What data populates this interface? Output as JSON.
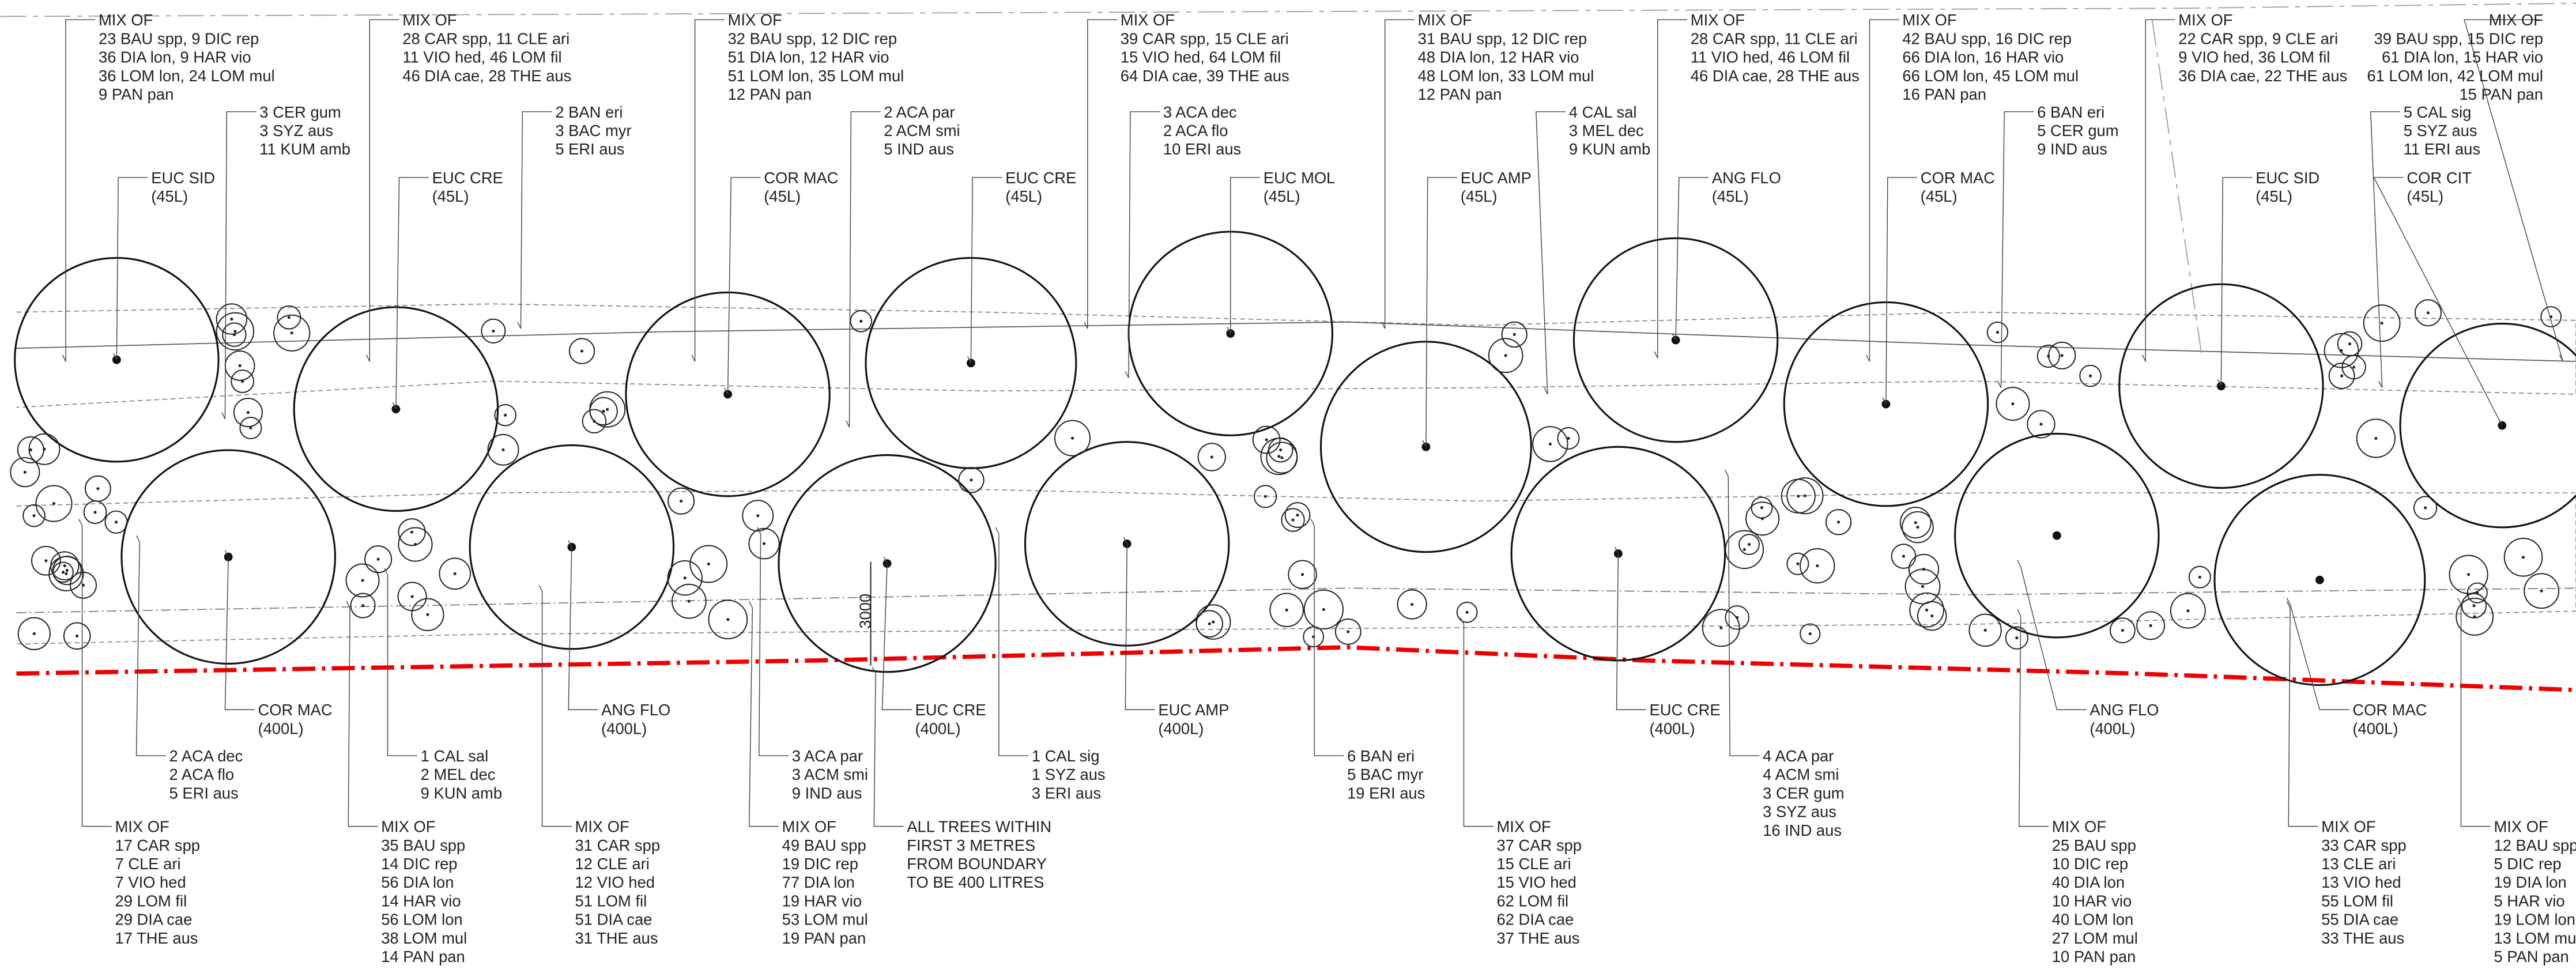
{
  "labels": [
    {
      "lines": [
        "MIX OF",
        "23 BAU spp, 9 DIC rep",
        "36 DIA lon, 9 HAR vio",
        "36 LOM lon, 24 LOM mul",
        "9 PAN pan"
      ]
    },
    {
      "lines": [
        "MIX OF",
        "28 CAR spp, 11 CLE ari",
        "11 VIO hed, 46 LOM fil",
        "46 DIA cae, 28 THE aus"
      ]
    },
    {
      "lines": [
        "MIX OF",
        "32 BAU spp, 12 DIC rep",
        "51 DIA lon, 12 HAR vio",
        "51 LOM lon, 35 LOM mul",
        "12 PAN pan"
      ]
    },
    {
      "lines": [
        "MIX OF",
        "39 CAR spp, 15 CLE ari",
        "15 VIO hed, 64 LOM fil",
        "64 DIA cae, 39 THE aus"
      ]
    },
    {
      "lines": [
        "MIX OF",
        "31 BAU spp, 12 DIC rep",
        "48 DIA lon, 12 HAR vio",
        "48 LOM lon, 33 LOM mul",
        "12 PAN pan"
      ]
    },
    {
      "lines": [
        "MIX OF",
        "28 CAR spp, 11 CLE ari",
        "11 VIO hed, 46 LOM fil",
        "46 DIA cae, 28 THE aus"
      ]
    },
    {
      "lines": [
        "MIX OF",
        "42 BAU spp, 16 DIC rep",
        "66 DIA lon, 16 HAR vio",
        "66 LOM lon, 45 LOM mul",
        "16 PAN pan"
      ]
    },
    {
      "lines": [
        "MIX OF",
        "22 CAR spp, 9 CLE ari",
        "9 VIO hed, 36 LOM fil",
        "36 DIA cae, 22 THE aus"
      ]
    },
    {
      "lines": [
        "MIX OF",
        "39 BAU spp, 15 DIC rep",
        "61 DIA lon, 15 HAR vio",
        "61 LOM lon, 42 LOM mul",
        "15 PAN pan"
      ]
    },
    {
      "lines": [
        "3 CER gum",
        "3 SYZ aus",
        "11 KUM amb"
      ]
    },
    {
      "lines": [
        "2 BAN eri",
        "3 BAC myr",
        "5 ERI aus"
      ]
    },
    {
      "lines": [
        "2 ACA par",
        "2 ACM smi",
        "5 IND aus"
      ]
    },
    {
      "lines": [
        "3 ACA dec",
        "2 ACA flo",
        "10 ERI aus"
      ]
    },
    {
      "lines": [
        "4 CAL sal",
        "3 MEL dec",
        "9 KUN amb"
      ]
    },
    {
      "lines": [
        "6 BAN eri",
        "5 CER gum",
        "9 IND aus"
      ]
    },
    {
      "lines": [
        "5 CAL sig",
        "5 SYZ aus",
        "11 ERI aus"
      ]
    },
    {
      "lines": [
        "EUC SID",
        "(45L)"
      ]
    },
    {
      "lines": [
        "EUC CRE",
        "(45L)"
      ]
    },
    {
      "lines": [
        "COR MAC",
        "(45L)"
      ]
    },
    {
      "lines": [
        "EUC CRE",
        "(45L)"
      ]
    },
    {
      "lines": [
        "EUC MOL",
        "(45L)"
      ]
    },
    {
      "lines": [
        "EUC AMP",
        "(45L)"
      ]
    },
    {
      "lines": [
        "ANG FLO",
        "(45L)"
      ]
    },
    {
      "lines": [
        "COR MAC",
        "(45L)"
      ]
    },
    {
      "lines": [
        "EUC SID",
        "(45L)"
      ]
    },
    {
      "lines": [
        "COR CIT",
        "(45L)"
      ]
    },
    {
      "lines": [
        "COR MAC",
        "(400L)"
      ]
    },
    {
      "lines": [
        "ANG FLO",
        "(400L)"
      ]
    },
    {
      "lines": [
        "EUC CRE",
        "(400L)"
      ]
    },
    {
      "lines": [
        "EUC AMP",
        "(400L)"
      ]
    },
    {
      "lines": [
        "EUC CRE",
        "(400L)"
      ]
    },
    {
      "lines": [
        "ANG FLO",
        "(400L)"
      ]
    },
    {
      "lines": [
        "COR MAC",
        "(400L)"
      ]
    },
    {
      "lines": [
        "2 ACA dec",
        "2 ACA flo",
        "5 ERI aus"
      ]
    },
    {
      "lines": [
        "1 CAL sal",
        "2 MEL dec",
        "9 KUN amb"
      ]
    },
    {
      "lines": [
        "3 ACA par",
        "3 ACM smi",
        "9 IND aus"
      ]
    },
    {
      "lines": [
        "1 CAL sig",
        "1 SYZ aus",
        "3 ERI aus"
      ]
    },
    {
      "lines": [
        "6 BAN eri",
        "5 BAC myr",
        "19 ERI aus"
      ]
    },
    {
      "lines": [
        "4 ACA par",
        "4 ACM smi",
        "3 CER gum",
        "3 SYZ aus",
        "16 IND aus"
      ]
    },
    {
      "lines": [
        "MIX OF",
        "17 CAR spp",
        "7 CLE ari",
        "7 VIO hed",
        "29 LOM fil",
        "29 DIA cae",
        "17 THE aus"
      ]
    },
    {
      "lines": [
        "MIX OF",
        "35 BAU spp",
        "14 DIC rep",
        "56 DIA lon",
        "14 HAR vio",
        "56 LOM lon",
        "38 LOM mul",
        "14 PAN pan"
      ]
    },
    {
      "lines": [
        "MIX OF",
        "31 CAR spp",
        "12 CLE ari",
        "12 VIO hed",
        "51 LOM fil",
        "51 DIA cae",
        "31 THE aus"
      ]
    },
    {
      "lines": [
        "MIX OF",
        "49 BAU spp",
        "19 DIC rep",
        "77 DIA lon",
        "19 HAR vio",
        "53 LOM mul",
        "19 PAN pan"
      ]
    },
    {
      "lines": [
        "ALL TREES WITHIN",
        "FIRST 3 METRES",
        "FROM BOUNDARY",
        "TO BE 400 LITRES"
      ]
    },
    {
      "lines": [
        "MIX OF",
        "37 CAR spp",
        "15 CLE ari",
        "15 VIO hed",
        "62 LOM fil",
        "62 DIA cae",
        "37 THE aus"
      ]
    },
    {
      "lines": [
        "MIX OF",
        "25 BAU spp",
        "10 DIC rep",
        "40 DIA lon",
        "10 HAR vio",
        "40 LOM lon",
        "27 LOM mul",
        "10 PAN pan"
      ]
    },
    {
      "lines": [
        "MIX OF",
        "33 CAR spp",
        "13 CLE ari",
        "13 VIO hed",
        "55 LOM fil",
        "55 DIA cae",
        "33 THE aus"
      ]
    },
    {
      "lines": [
        "MIX OF",
        "12 BAU spp",
        "5 DIC rep",
        "19 DIA lon",
        "5 HAR vio",
        "19 LOM lon",
        "13 LOM mul",
        "5 PAN pan"
      ]
    }
  ],
  "dimension": "3000"
}
